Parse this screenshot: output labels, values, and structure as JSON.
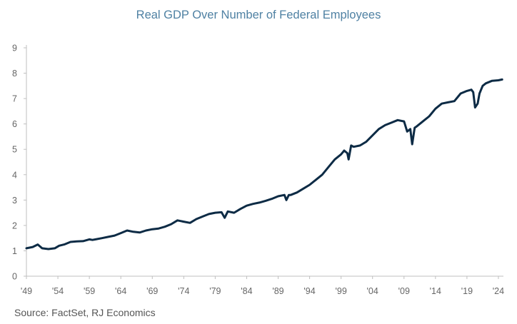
{
  "title": "Real GDP Over Number of Federal Employees",
  "source": "Source: FactSet, RJ Economics",
  "colors": {
    "line": "#0d2b45",
    "title": "#4f81a3",
    "axis": "#bfbfbf",
    "tick": "#666666"
  },
  "chart_data": {
    "type": "line",
    "title": "Real GDP Over Number of Federal Employees",
    "xlabel": "",
    "ylabel": "",
    "xlim": [
      1949,
      2024.8
    ],
    "ylim": [
      0,
      9
    ],
    "grid": false,
    "legend": "none",
    "x_tick_values": [
      1949,
      1954,
      1959,
      1964,
      1969,
      1974,
      1979,
      1984,
      1989,
      1994,
      1999,
      2004,
      2009,
      2014,
      2019,
      2024
    ],
    "x_tick_labels": [
      "'49",
      "'54",
      "'59",
      "'64",
      "'69",
      "'74",
      "'79",
      "'84",
      "'89",
      "'94",
      "'99",
      "'04",
      "'09",
      "'14",
      "'19",
      "'24"
    ],
    "y_ticks": [
      0,
      1,
      2,
      3,
      4,
      5,
      6,
      7,
      8,
      9
    ],
    "series": [
      {
        "x": [
          1949,
          1950,
          1950.8,
          1951.5,
          1952.5,
          1953.5,
          1954.2,
          1955,
          1956,
          1957,
          1958,
          1959,
          1959.5,
          1960,
          1961,
          1962,
          1963,
          1964,
          1965,
          1966,
          1967,
          1968,
          1969,
          1970,
          1971,
          1972,
          1973,
          1974,
          1975,
          1976,
          1977,
          1978,
          1979,
          1980,
          1980.5,
          1981,
          1982,
          1983,
          1984,
          1985,
          1986,
          1987,
          1988,
          1989,
          1990,
          1990.3,
          1990.7,
          1991,
          1992,
          1993,
          1994,
          1995,
          1996,
          1997,
          1998,
          1999,
          1999.5,
          2000,
          2000.2,
          2000.6,
          2001,
          2002,
          2003,
          2004,
          2005,
          2006,
          2007,
          2008,
          2009,
          2009.5,
          2010,
          2010.3,
          2010.7,
          2011,
          2012,
          2013,
          2014,
          2015,
          2016,
          2017,
          2018,
          2019,
          2019.7,
          2020,
          2020.3,
          2020.7,
          2021,
          2021.5,
          2022,
          2023,
          2024,
          2024.6
        ],
        "y": [
          1.1,
          1.15,
          1.25,
          1.1,
          1.07,
          1.1,
          1.2,
          1.25,
          1.35,
          1.37,
          1.38,
          1.45,
          1.43,
          1.45,
          1.5,
          1.55,
          1.6,
          1.7,
          1.8,
          1.75,
          1.72,
          1.8,
          1.85,
          1.88,
          1.95,
          2.05,
          2.2,
          2.15,
          2.1,
          2.25,
          2.35,
          2.45,
          2.5,
          2.52,
          2.3,
          2.55,
          2.5,
          2.65,
          2.78,
          2.85,
          2.9,
          2.97,
          3.05,
          3.15,
          3.2,
          3.0,
          3.2,
          3.2,
          3.3,
          3.45,
          3.6,
          3.8,
          4.0,
          4.3,
          4.6,
          4.8,
          4.95,
          4.85,
          4.6,
          5.15,
          5.1,
          5.15,
          5.3,
          5.55,
          5.8,
          5.95,
          6.05,
          6.15,
          6.1,
          5.7,
          5.8,
          5.2,
          5.85,
          5.9,
          6.1,
          6.3,
          6.6,
          6.8,
          6.85,
          6.9,
          7.2,
          7.3,
          7.35,
          7.25,
          6.65,
          6.8,
          7.2,
          7.5,
          7.6,
          7.7,
          7.72,
          7.75
        ]
      }
    ]
  }
}
